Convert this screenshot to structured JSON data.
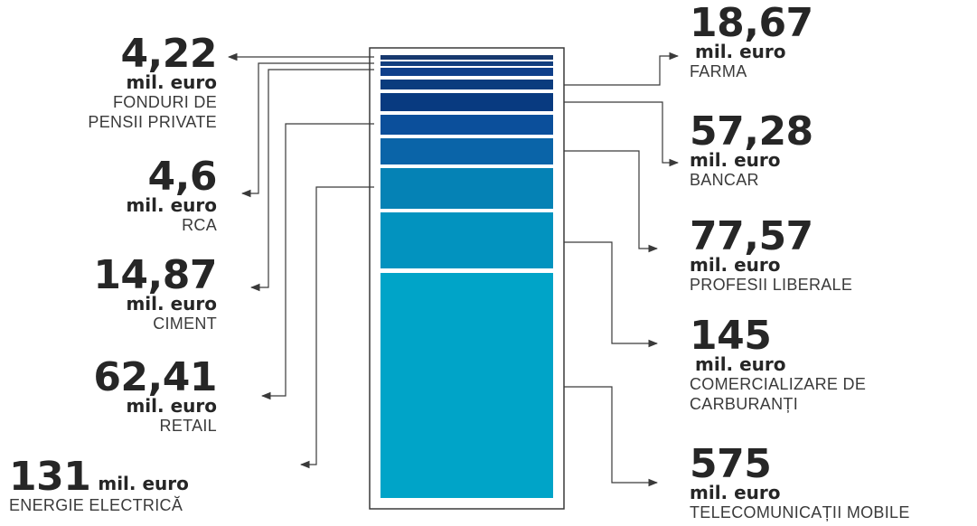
{
  "chart_data": {
    "type": "bar",
    "unit": "mil. euro",
    "segments": [
      {
        "name": "TELECOMUNICAȚII MOBILE",
        "value_label": "575",
        "value": 575,
        "color": "#00a4c8"
      },
      {
        "name": "COMERCIALIZARE DE CARBURANȚI",
        "value_label": "145",
        "value": 145,
        "color": "#0293bf"
      },
      {
        "name": "ENERGIE ELECTRICĂ",
        "value_label": "131",
        "value": 131,
        "color": "#0582b5"
      },
      {
        "name": "PROFESII LIBERALE",
        "value_label": "77,57",
        "value": 77.57,
        "color": "#0a64a8"
      },
      {
        "name": "RETAIL",
        "value_label": "62,41",
        "value": 62.41,
        "color": "#0b4f9b"
      },
      {
        "name": "BANCAR",
        "value_label": "57,28",
        "value": 57.28,
        "color": "#083a80"
      },
      {
        "name": "FARMA",
        "value_label": "18,67",
        "value": 18.67,
        "color": "#0b3c7e"
      },
      {
        "name": "CIMENT",
        "value_label": "14,87",
        "value": 14.87,
        "color": "#0f3f8a"
      },
      {
        "name": "RCA",
        "value_label": "4,6",
        "value": 4.6,
        "color": "#123e7e"
      },
      {
        "name": "FONDURI DE PENSII PRIVATE",
        "value_label": "4,22",
        "value": 4.22,
        "color": "#17396f"
      }
    ]
  },
  "labels": {
    "fonduri": {
      "value": "4,22",
      "unit": "mil. euro",
      "name_line1": "FONDURI DE",
      "name_line2": "PENSII PRIVATE"
    },
    "rca": {
      "value": "4,6",
      "unit": "mil. euro",
      "name": "RCA"
    },
    "ciment": {
      "value": "14,87",
      "unit": "mil. euro",
      "name": "CIMENT"
    },
    "retail": {
      "value": "62,41",
      "unit": "mil. euro",
      "name": "RETAIL"
    },
    "energie": {
      "value": "131",
      "unit": "mil. euro",
      "name": "ENERGIE ELECTRICĂ"
    },
    "farma": {
      "value": "18,67",
      "unit": "mil. euro",
      "name": "FARMA"
    },
    "bancar": {
      "value": "57,28",
      "unit": "mil. euro",
      "name": "BANCAR"
    },
    "profesii": {
      "value": "77,57",
      "unit": "mil. euro",
      "name": "PROFESII LIBERALE"
    },
    "carburanti": {
      "value": "145",
      "unit": "mil. euro",
      "name_line1": "COMERCIALIZARE DE",
      "name_line2": "CARBURANȚI"
    },
    "telecom": {
      "value": "575",
      "unit": "mil. euro",
      "name": "TELECOMUNICAȚII MOBILE"
    }
  },
  "colors": {
    "outline": "#3a3a3a",
    "text": "#262626"
  }
}
